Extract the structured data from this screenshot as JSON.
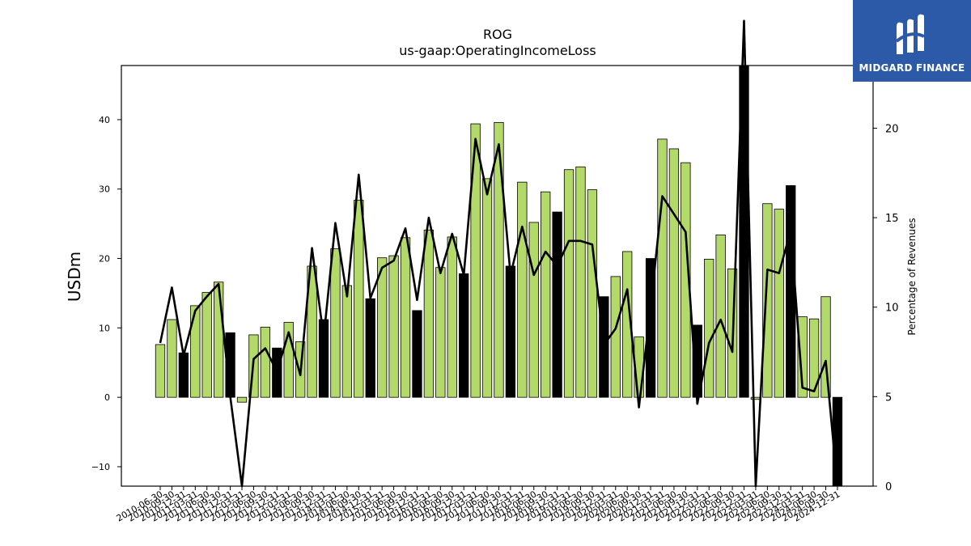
{
  "chart_data": {
    "type": "bar",
    "title": "ROG",
    "subtitle": "us-gaap:OperatingIncomeLoss",
    "ylabel": "USDm",
    "y2label": "Percentage of Revenues",
    "ylim": [
      -12.8,
      47.8
    ],
    "y2lim": [
      0,
      23.5
    ],
    "yticks": [
      -10,
      0,
      10,
      20,
      30,
      40
    ],
    "y2ticks": [
      0,
      5,
      10,
      15,
      20
    ],
    "grid": false,
    "colors": {
      "bar": "#b2d96a",
      "bar_q4": "#000000",
      "line": "#000000",
      "edge": "#000000"
    },
    "categories": [
      "2010-06-30",
      "2010-09-30",
      "2010-12-31",
      "2011-03-31",
      "2011-06-30",
      "2011-09-30",
      "2011-12-31",
      "2012-03-31",
      "2012-06-30",
      "2012-09-30",
      "2012-12-31",
      "2013-03-31",
      "2013-06-30",
      "2013-09-30",
      "2013-12-31",
      "2014-03-31",
      "2014-06-30",
      "2014-09-30",
      "2014-12-31",
      "2015-03-31",
      "2015-06-30",
      "2015-09-30",
      "2015-12-31",
      "2016-03-31",
      "2016-06-30",
      "2016-09-30",
      "2016-12-31",
      "2017-03-31",
      "2017-06-30",
      "2017-09-30",
      "2017-12-31",
      "2018-03-31",
      "2018-06-30",
      "2018-09-30",
      "2018-12-31",
      "2019-03-31",
      "2019-06-30",
      "2019-09-30",
      "2019-12-31",
      "2020-03-31",
      "2020-06-30",
      "2020-09-30",
      "2020-12-31",
      "2021-03-31",
      "2021-06-30",
      "2021-09-30",
      "2021-12-31",
      "2022-03-31",
      "2022-06-30",
      "2022-09-30",
      "2022-12-31",
      "2023-03-31",
      "2023-06-30",
      "2023-09-30",
      "2023-12-31",
      "2024-03-31",
      "2024-06-30",
      "2024-09-30",
      "2024-12-31"
    ],
    "series": [
      {
        "kind": "bar",
        "values": [
          7.6,
          11.2,
          6.4,
          13.2,
          15.1,
          16.6,
          9.3,
          -0.7,
          9.0,
          10.1,
          7.1,
          10.8,
          8.0,
          18.9,
          11.2,
          21.4,
          16.1,
          28.4,
          14.2,
          20.1,
          20.4,
          23.0,
          12.5,
          24.1,
          18.7,
          23.1,
          17.8,
          39.4,
          31.5,
          39.6,
          18.9,
          31.0,
          25.2,
          29.6,
          26.7,
          32.8,
          33.2,
          29.9,
          14.5,
          17.4,
          21.0,
          8.7,
          20.0,
          37.2,
          35.8,
          33.8,
          10.4,
          19.9,
          23.4,
          18.5,
          48.0,
          -0.3,
          27.9,
          27.1,
          30.5,
          11.6,
          11.3,
          14.5,
          -12.8
        ],
        "q4_highlight": [
          2,
          6,
          10,
          14,
          18,
          22,
          26,
          30,
          34,
          38,
          42,
          46,
          50,
          54,
          58
        ]
      },
      {
        "kind": "line",
        "axis": "right",
        "values": [
          8.0,
          11.1,
          7.3,
          9.8,
          10.6,
          11.3,
          5.0,
          0.0,
          7.1,
          7.7,
          6.4,
          8.6,
          6.2,
          13.3,
          8.3,
          14.7,
          10.6,
          17.4,
          10.5,
          12.2,
          12.6,
          14.4,
          10.4,
          15.0,
          11.9,
          14.1,
          11.8,
          19.4,
          16.3,
          19.1,
          11.8,
          14.5,
          11.8,
          13.1,
          12.3,
          13.7,
          13.7,
          13.5,
          7.9,
          8.8,
          11.0,
          4.4,
          10.0,
          16.2,
          15.2,
          14.2,
          4.6,
          8.0,
          9.3,
          7.5,
          26.0,
          0.0,
          12.1,
          11.9,
          14.3,
          5.5,
          5.3,
          7.0,
          0.0
        ]
      }
    ]
  },
  "logo": {
    "text": "MIDGARD FINANCE"
  }
}
